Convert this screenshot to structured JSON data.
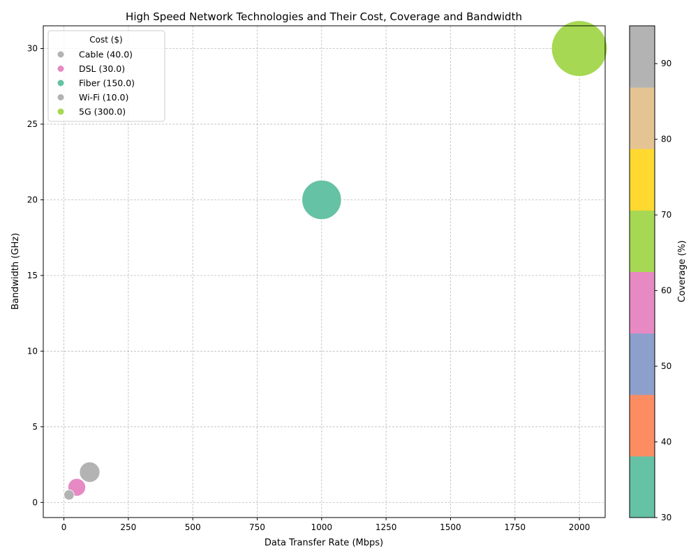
{
  "chart_data": {
    "type": "scatter",
    "title": "High Speed Network Technologies and Their Cost, Coverage and Bandwidth",
    "xlabel": "Data Transfer Rate (Mbps)",
    "ylabel": "Bandwidth (GHz)",
    "xlim": [
      -80,
      2100
    ],
    "ylim": [
      -1,
      31.5
    ],
    "xticks": [
      0,
      250,
      500,
      750,
      1000,
      1250,
      1500,
      1750,
      2000
    ],
    "yticks": [
      0,
      5,
      10,
      15,
      20,
      25,
      30
    ],
    "grid": true,
    "legend_title": "Cost ($)",
    "legend_position": "top-left",
    "points": [
      {
        "label": "Cable (40.0)",
        "x": 100,
        "y": 2,
        "cost": 40,
        "coverage": 90,
        "color": "#b3b3b3"
      },
      {
        "label": "DSL (30.0)",
        "x": 50,
        "y": 1,
        "cost": 30,
        "coverage": 60,
        "color": "#e78ac3"
      },
      {
        "label": "Fiber (150.0)",
        "x": 1000,
        "y": 20,
        "cost": 150,
        "coverage": 30,
        "color": "#66c2a5"
      },
      {
        "label": "Wi-Fi (10.0)",
        "x": 20,
        "y": 0.5,
        "cost": 10,
        "coverage": 95,
        "color": "#b3b3b3"
      },
      {
        "label": "5G (300.0)",
        "x": 2000,
        "y": 30,
        "cost": 300,
        "coverage": 70,
        "color": "#a6d854"
      }
    ],
    "colorbar": {
      "label": "Coverage (%)",
      "min": 30,
      "max": 95,
      "ticks": [
        30,
        40,
        50,
        60,
        70,
        80,
        90
      ],
      "colors": [
        "#66c2a5",
        "#fc8d62",
        "#8da0cb",
        "#e78ac3",
        "#a6d854",
        "#ffd92f",
        "#e5c494",
        "#b3b3b3"
      ]
    }
  }
}
